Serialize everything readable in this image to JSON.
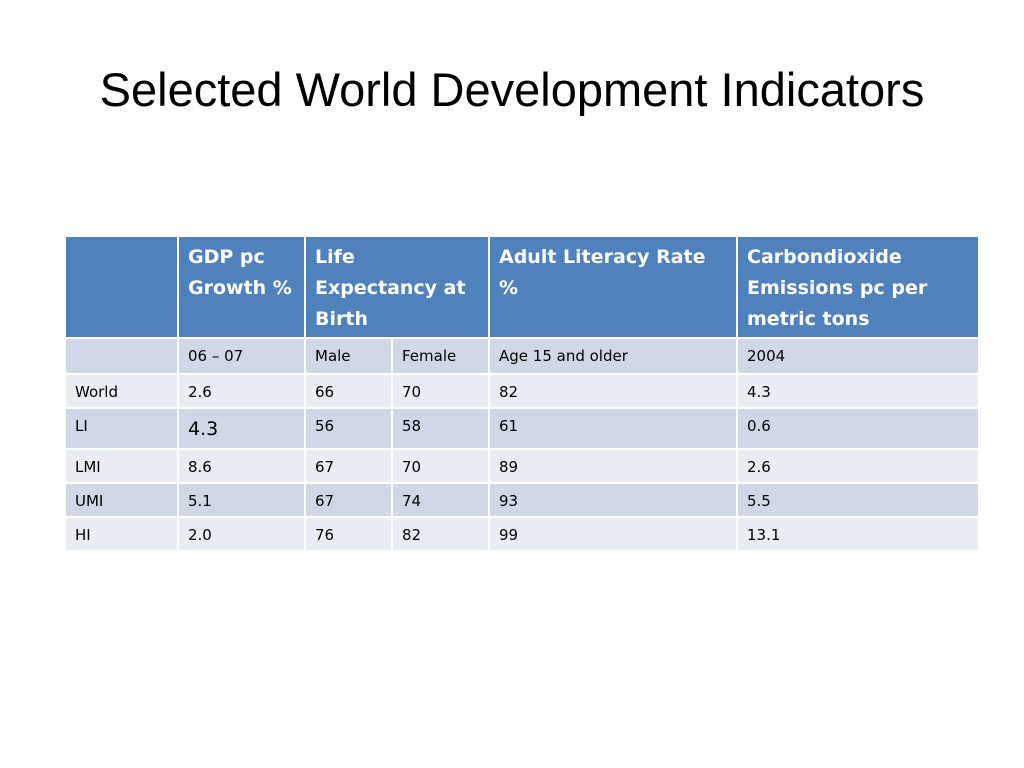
{
  "slide": {
    "title": "Selected World Development Indicators"
  },
  "table": {
    "header": {
      "corner": "",
      "gdp": "GDP pc Growth %",
      "life": "Life Expectancy at Birth",
      "literacy": "Adult Literacy Rate %",
      "co2": "Carbondioxide Emissions pc per metric tons"
    },
    "subheader": {
      "corner": "",
      "gdp": "06 – 07",
      "male": "Male",
      "female": "Female",
      "literacy": "Age 15 and older",
      "co2": "2004"
    },
    "rows": [
      {
        "label": "World",
        "gdp": "2.6",
        "male": "66",
        "female": "70",
        "literacy": "82",
        "co2": "4.3"
      },
      {
        "label": "LI",
        "gdp": "4.3",
        "male": "56",
        "female": "58",
        "literacy": "61",
        "co2": "0.6"
      },
      {
        "label": "LMI",
        "gdp": "8.6",
        "male": "67",
        "female": "70",
        "literacy": "89",
        "co2": "2.6"
      },
      {
        "label": "UMI",
        "gdp": "5.1",
        "male": "67",
        "female": "74",
        "literacy": "93",
        "co2": "5.5"
      },
      {
        "label": "HI",
        "gdp": "2.0",
        "male": "76",
        "female": "82",
        "literacy": "99",
        "co2": "13.1"
      }
    ]
  },
  "colors": {
    "header_bg": "#4f81bd",
    "row_dark": "#d0d8e8",
    "row_light": "#e9edf4"
  }
}
